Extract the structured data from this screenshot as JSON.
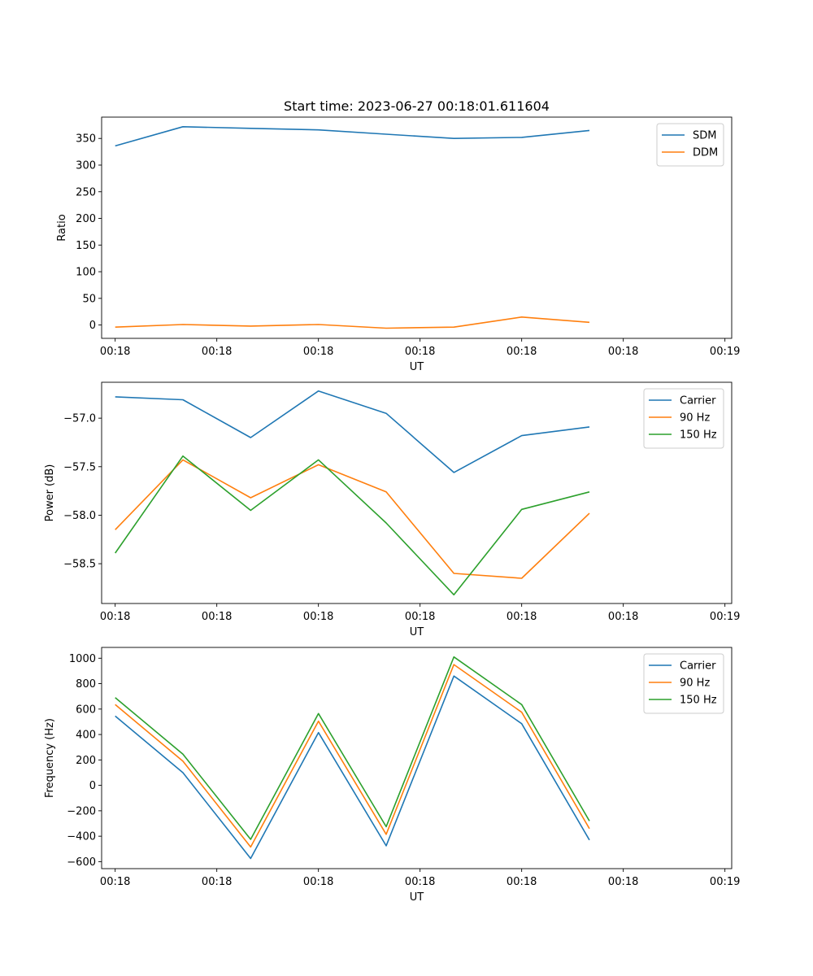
{
  "chart_data": [
    {
      "type": "line",
      "title": "Start time: 2023-06-27 00:18:01.611604",
      "xlabel": "UT",
      "ylabel": "Ratio",
      "x_tick_labels": [
        "00:18",
        "00:18",
        "00:18",
        "00:18",
        "00:18",
        "00:18",
        "00:19"
      ],
      "x": [
        1,
        2,
        3,
        4,
        5,
        6,
        7,
        8
      ],
      "xlim": [
        0.8,
        10.1
      ],
      "ylim": [
        -25,
        390
      ],
      "yticks": [
        0,
        50,
        100,
        150,
        200,
        250,
        300,
        350
      ],
      "y_tick_labels": [
        "0",
        "50",
        "100",
        "150",
        "200",
        "250",
        "300",
        "350"
      ],
      "legend_position": "top-right",
      "grid": false,
      "series": [
        {
          "name": "SDM",
          "color": "#1f77b4",
          "values": [
            336,
            372,
            369,
            366,
            358,
            350,
            352,
            365
          ]
        },
        {
          "name": "DDM",
          "color": "#ff7f0e",
          "values": [
            -4,
            1,
            -2,
            1,
            -6,
            -4,
            15,
            5
          ]
        }
      ]
    },
    {
      "type": "line",
      "title": "",
      "xlabel": "UT",
      "ylabel": "Power (dB)",
      "x_tick_labels": [
        "00:18",
        "00:18",
        "00:18",
        "00:18",
        "00:18",
        "00:18",
        "00:19"
      ],
      "x": [
        1,
        2,
        3,
        4,
        5,
        6,
        7,
        8
      ],
      "xlim": [
        0.8,
        10.1
      ],
      "ylim": [
        -58.91,
        -56.63
      ],
      "yticks": [
        -58.5,
        -58.0,
        -57.5,
        -57.0
      ],
      "y_tick_labels": [
        "−58.5",
        "−58.0",
        "−57.5",
        "−57.0"
      ],
      "legend_position": "top-right",
      "grid": false,
      "series": [
        {
          "name": "Carrier",
          "color": "#1f77b4",
          "values": [
            -56.78,
            -56.81,
            -57.2,
            -56.72,
            -56.95,
            -57.56,
            -57.18,
            -57.09
          ]
        },
        {
          "name": "90 Hz",
          "color": "#ff7f0e",
          "values": [
            -58.15,
            -57.43,
            -57.82,
            -57.48,
            -57.76,
            -58.6,
            -58.65,
            -57.98
          ]
        },
        {
          "name": "150 Hz",
          "color": "#2ca02c",
          "values": [
            -58.39,
            -57.39,
            -57.95,
            -57.43,
            -58.08,
            -58.82,
            -57.94,
            -57.76
          ]
        }
      ]
    },
    {
      "type": "line",
      "title": "",
      "xlabel": "UT",
      "ylabel": "Frequency (Hz)",
      "x_tick_labels": [
        "00:18",
        "00:18",
        "00:18",
        "00:18",
        "00:18",
        "00:18",
        "00:19"
      ],
      "x": [
        1,
        2,
        3,
        4,
        5,
        6,
        7,
        8
      ],
      "xlim": [
        0.8,
        10.1
      ],
      "ylim": [
        -655,
        1085
      ],
      "yticks": [
        -600,
        -400,
        -200,
        0,
        200,
        400,
        600,
        800,
        1000
      ],
      "y_tick_labels": [
        "−600",
        "−400",
        "−200",
        "0",
        "200",
        "400",
        "600",
        "800",
        "1000"
      ],
      "legend_position": "top-right",
      "grid": false,
      "series": [
        {
          "name": "Carrier",
          "color": "#1f77b4",
          "values": [
            545,
            100,
            -575,
            415,
            -475,
            860,
            485,
            -430
          ]
        },
        {
          "name": "90 Hz",
          "color": "#ff7f0e",
          "values": [
            635,
            190,
            -485,
            505,
            -385,
            950,
            575,
            -340
          ]
        },
        {
          "name": "150 Hz",
          "color": "#2ca02c",
          "values": [
            690,
            245,
            -425,
            565,
            -325,
            1010,
            635,
            -280
          ]
        }
      ]
    }
  ]
}
